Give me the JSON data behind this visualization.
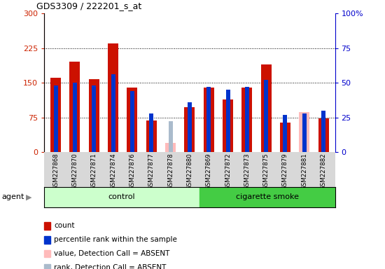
{
  "title": "GDS3309 / 222201_s_at",
  "samples": [
    "GSM227868",
    "GSM227870",
    "GSM227871",
    "GSM227874",
    "GSM227876",
    "GSM227877",
    "GSM227878",
    "GSM227880",
    "GSM227869",
    "GSM227872",
    "GSM227873",
    "GSM227875",
    "GSM227879",
    "GSM227881",
    "GSM227882"
  ],
  "count": [
    160,
    195,
    157,
    235,
    140,
    68,
    null,
    97,
    140,
    113,
    140,
    190,
    63,
    null,
    73
  ],
  "count_absent": [
    null,
    null,
    null,
    null,
    null,
    null,
    20,
    null,
    null,
    null,
    null,
    null,
    null,
    87,
    null
  ],
  "rank": [
    48,
    50,
    48,
    56,
    44,
    null,
    null,
    36,
    47,
    45,
    47,
    52,
    null,
    null,
    30
  ],
  "rank_pres_absent": [
    null,
    null,
    null,
    null,
    null,
    28,
    null,
    null,
    null,
    null,
    null,
    null,
    27,
    28,
    null
  ],
  "rank_absent": [
    null,
    null,
    null,
    null,
    null,
    null,
    22,
    null,
    null,
    null,
    null,
    null,
    null,
    null,
    null
  ],
  "n_control": 8,
  "n_smoke": 7,
  "ylim_left": [
    0,
    300
  ],
  "ylim_right": [
    0,
    100
  ],
  "yticks_left": [
    0,
    75,
    150,
    225,
    300
  ],
  "yticks_right": [
    0,
    25,
    50,
    75,
    100
  ],
  "bar_color_red": "#cc1100",
  "bar_color_absent": "#ffbbbb",
  "rank_color_blue": "#0033cc",
  "rank_color_absent": "#aabbcc",
  "control_color_light": "#ccffcc",
  "smoke_color_green": "#44cc44",
  "left_tick_color": "#cc2200",
  "right_tick_color": "#0000cc"
}
